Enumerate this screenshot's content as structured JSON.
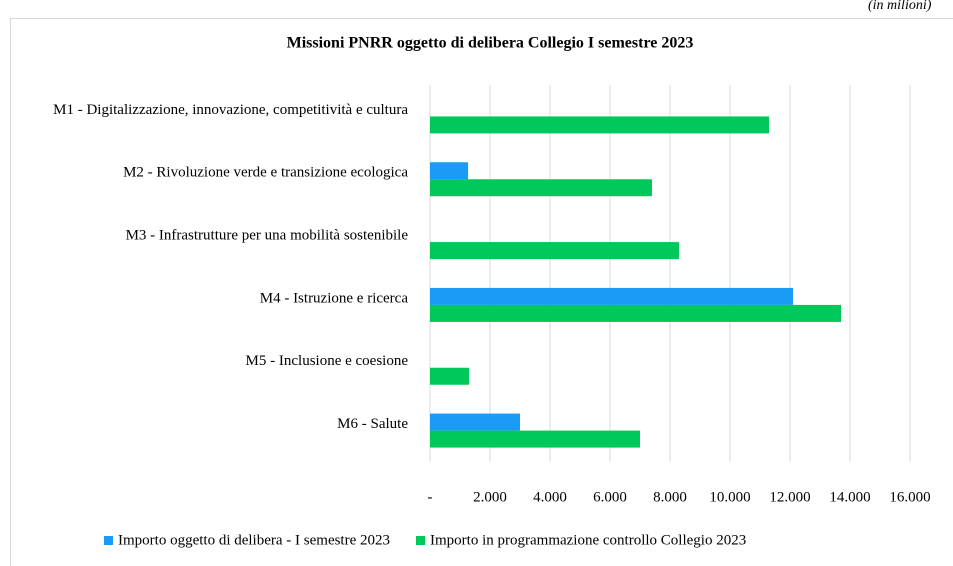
{
  "chart_data": {
    "type": "barh",
    "title": "Missioni PNRR oggetto di delibera Collegio I semestre 2023",
    "note": "(in milioni)",
    "categories": [
      "M1 - Digitalizzazione, innovazione, competitività e cultura",
      "M2 - Rivoluzione verde e transizione ecologica",
      "M3 - Infrastrutture per una mobilità sostenibile",
      "M4 - Istruzione e ricerca",
      "M5 - Inclusione e coesione",
      "M6 - Salute"
    ],
    "series": [
      {
        "name": "Importo oggetto di delibera - I semestre 2023",
        "color": "#1a9bf5",
        "values": [
          null,
          1270,
          null,
          12100,
          null,
          3000
        ]
      },
      {
        "name": "Importo in programmazione controllo Collegio 2023",
        "color": "#00c85a",
        "values": [
          11300,
          7400,
          8300,
          13700,
          1300,
          7000
        ]
      }
    ],
    "xlim": [
      0,
      16000
    ],
    "xticks": [
      {
        "value": 0,
        "label": "-"
      },
      {
        "value": 2000,
        "label": "2.000"
      },
      {
        "value": 4000,
        "label": "4.000"
      },
      {
        "value": 6000,
        "label": "6.000"
      },
      {
        "value": 8000,
        "label": "8.000"
      },
      {
        "value": 10000,
        "label": "10.000"
      },
      {
        "value": 12000,
        "label": "12.000"
      },
      {
        "value": 14000,
        "label": "14.000"
      },
      {
        "value": 16000,
        "label": "16.000"
      }
    ],
    "grid": true,
    "legend": "bottom"
  }
}
